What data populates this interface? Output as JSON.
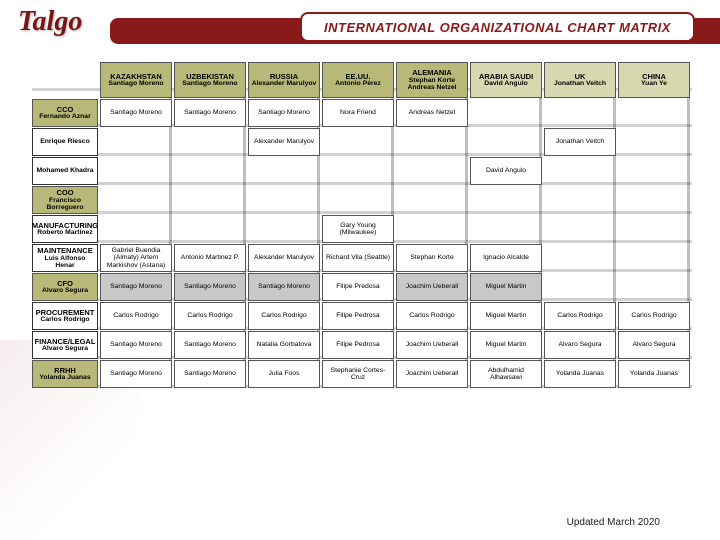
{
  "logo": "Talgo",
  "title": "INTERNATIONAL ORGANIZATIONAL  CHART  MATRIX",
  "footer": "Updated March 2020",
  "columns": [
    {
      "country": "KAZAKHSTAN",
      "lead": "Santiago Moreno",
      "shade": "dark"
    },
    {
      "country": "UZBEKISTAN",
      "lead": "Santiago Moreno",
      "shade": "dark"
    },
    {
      "country": "RUSSIA",
      "lead": "Alexander Marulyov",
      "shade": "dark"
    },
    {
      "country": "EE.UU.",
      "lead": "Antonio Pérez",
      "shade": "dark"
    },
    {
      "country": "ALEMANIA",
      "lead": "Stephan Korte Andreas Netzel",
      "shade": "dark"
    },
    {
      "country": "ARABIA SAUDI",
      "lead": "David Angulo",
      "shade": "light"
    },
    {
      "country": "UK",
      "lead": "Jonathan Veitch",
      "shade": "light"
    },
    {
      "country": "CHINA",
      "lead": "Yuan Ye",
      "shade": "light"
    }
  ],
  "rows": [
    {
      "head": {
        "t": "CCO",
        "s": "Fernando Aznar",
        "kind": "exec"
      },
      "cells": [
        "Santiago Moreno",
        "Santiago Moreno",
        "Santiago Moreno",
        "Nora Friend",
        "Andreas Netzel",
        "",
        "",
        ""
      ]
    },
    {
      "head": {
        "t": "",
        "s": "Enrique Riesco",
        "kind": "dept"
      },
      "cells": [
        "",
        "",
        "Alexander Marulyov",
        "",
        "",
        "",
        "Jonathan Veitch",
        ""
      ]
    },
    {
      "head": {
        "t": "",
        "s": "Mohamed Khadra",
        "kind": "dept"
      },
      "cells": [
        "",
        "",
        "",
        "",
        "",
        "David Angulo",
        "",
        ""
      ]
    },
    {
      "head": {
        "t": "COO",
        "s": "Francisco Borreguero",
        "kind": "exec"
      },
      "cells": [
        "",
        "",
        "",
        "",
        "",
        "",
        "",
        ""
      ]
    },
    {
      "head": {
        "t": "MANUFACTURING",
        "s": "Roberto Martinez",
        "kind": "dept"
      },
      "cells": [
        "",
        "",
        " ",
        "Gary Young (Milwaukee)",
        "",
        "",
        "",
        ""
      ]
    },
    {
      "head": {
        "t": "MAINTENANCE",
        "s": "Luis Alfonso Henar",
        "kind": "dept"
      },
      "cells": [
        "Gabriel Buendia (Almaty) Artem Markishov (Astana)",
        "Antonio Martinez P.",
        "Alexander Marulyov",
        "Richard Vila (Seattle)",
        "Stephan Korte",
        "Ignacio Alcalde",
        "",
        ""
      ]
    },
    {
      "head": {
        "t": "CFO",
        "s": "Alvaro Segura",
        "kind": "exec"
      },
      "cells": [
        "Santiago Moreno|s",
        "Santiago Moreno|s",
        "Santiago Moreno|s",
        "Filipe Predosa",
        "Joachim Ueberall|s",
        "Miguel Martin|s",
        "",
        ""
      ]
    },
    {
      "head": {
        "t": "PROCUREMENT",
        "s": "Carlos Rodrigo",
        "kind": "dept"
      },
      "cells": [
        "Carlos Rodrigo",
        "Carlos Rodrigo",
        "Carlos Rodrigo",
        "Filipe Pedrosa",
        "Carlos Rodrigo",
        "Miguel Martin",
        "Carlos Rodrigo",
        "Carlos Rodrigo"
      ]
    },
    {
      "head": {
        "t": "FINANCE/LEGAL",
        "s": "Alvaro Segura",
        "kind": "dept"
      },
      "cells": [
        "Santiago Moreno",
        "Santiago Moreno",
        "Natalia Gorbatova",
        "Filipe Pedrosa",
        "Joachim Ueberall",
        "Miguel Martin",
        "Alvaro Segura",
        "Alvaro Segura"
      ]
    },
    {
      "head": {
        "t": "RRHH",
        "s": "Yolanda Juanas",
        "kind": "exec"
      },
      "cells": [
        "Santiago Moreno",
        "Santiago Moreno",
        "Julia Foos",
        "Stephanie Cortes-Cruz",
        "Joachim Ueberall",
        "Abdulhamid Alhawsawi",
        "Yolanda Juanas",
        "Yolanda Juanas"
      ]
    }
  ],
  "colors": {
    "brand": "#8a1a1a",
    "head_dark": "#b8b878",
    "head_light": "#d8d8b0",
    "shade": "#c8c8c8"
  }
}
